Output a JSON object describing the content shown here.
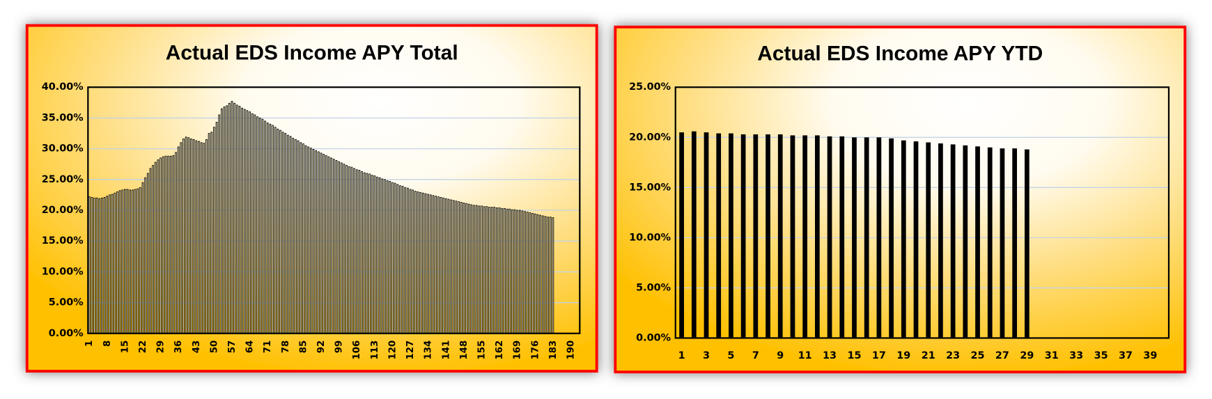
{
  "chart_data": [
    {
      "type": "bar",
      "title": "Actual EDS Income APY Total",
      "categories": [
        "1",
        null,
        null,
        null,
        null,
        null,
        null,
        "8",
        null,
        null,
        null,
        null,
        null,
        null,
        "15",
        null,
        null,
        null,
        null,
        null,
        null,
        "22",
        null,
        null,
        null,
        null,
        null,
        null,
        "29",
        null,
        null,
        null,
        null,
        null,
        null,
        "36",
        null,
        null,
        null,
        null,
        null,
        null,
        "43",
        null,
        null,
        null,
        null,
        null,
        null,
        "50",
        null,
        null,
        null,
        null,
        null,
        null,
        "57",
        null,
        null,
        null,
        null,
        null,
        null,
        "64",
        null,
        null,
        null,
        null,
        null,
        null,
        "71",
        null,
        null,
        null,
        null,
        null,
        null,
        "78",
        null,
        null,
        null,
        null,
        null,
        null,
        "85",
        null,
        null,
        null,
        null,
        null,
        null,
        "92",
        null,
        null,
        null,
        null,
        null,
        null,
        "99",
        null,
        null,
        null,
        null,
        null,
        null,
        "106",
        null,
        null,
        null,
        null,
        null,
        null,
        "113",
        null,
        null,
        null,
        null,
        null,
        null,
        "120",
        null,
        null,
        null,
        null,
        null,
        null,
        "127",
        null,
        null,
        null,
        null,
        null,
        null,
        "134",
        null,
        null,
        null,
        null,
        null,
        null,
        "141",
        null,
        null,
        null,
        null,
        null,
        null,
        "148",
        null,
        null,
        null,
        null,
        null,
        null,
        "155",
        null,
        null,
        null,
        null,
        null,
        null,
        "162",
        null,
        null,
        null,
        null,
        null,
        null,
        "169",
        null,
        null,
        null,
        null,
        null,
        null,
        "176",
        null,
        null,
        null,
        null,
        null,
        null,
        "183",
        null,
        null,
        null,
        null,
        null,
        null,
        "190",
        null,
        null,
        null
      ],
      "values": [
        22.2,
        22.1,
        22.0,
        22.0,
        21.9,
        22.0,
        22.1,
        22.3,
        22.5,
        22.6,
        22.8,
        23.0,
        23.2,
        23.3,
        23.4,
        23.4,
        23.3,
        23.3,
        23.4,
        23.5,
        23.7,
        24.5,
        25.3,
        26.0,
        26.8,
        27.3,
        27.8,
        28.2,
        28.5,
        28.7,
        28.8,
        28.8,
        28.8,
        28.9,
        29.4,
        30.3,
        31.0,
        31.6,
        31.9,
        31.8,
        31.6,
        31.5,
        31.3,
        31.2,
        31.0,
        30.9,
        31.5,
        32.5,
        32.7,
        33.5,
        34.3,
        35.5,
        36.5,
        36.8,
        37.0,
        37.4,
        37.7,
        37.4,
        37.1,
        36.9,
        36.6,
        36.4,
        36.2,
        36.0,
        35.7,
        35.5,
        35.2,
        35.0,
        34.8,
        34.5,
        34.2,
        34.0,
        33.8,
        33.5,
        33.2,
        33.0,
        32.7,
        32.5,
        32.2,
        32.0,
        31.7,
        31.5,
        31.3,
        31.0,
        30.8,
        30.5,
        30.3,
        30.1,
        29.9,
        29.7,
        29.5,
        29.3,
        29.1,
        28.9,
        28.7,
        28.5,
        28.3,
        28.1,
        27.9,
        27.7,
        27.5,
        27.3,
        27.1,
        27.0,
        26.8,
        26.6,
        26.5,
        26.3,
        26.1,
        26.0,
        25.9,
        25.7,
        25.6,
        25.4,
        25.3,
        25.1,
        25.0,
        24.8,
        24.7,
        24.5,
        24.4,
        24.2,
        24.0,
        23.9,
        23.7,
        23.6,
        23.4,
        23.3,
        23.1,
        23.0,
        22.9,
        22.8,
        22.7,
        22.6,
        22.5,
        22.4,
        22.3,
        22.2,
        22.1,
        22.0,
        21.9,
        21.8,
        21.7,
        21.6,
        21.5,
        21.4,
        21.3,
        21.2,
        21.1,
        21.0,
        20.9,
        20.8,
        20.8,
        20.7,
        20.7,
        20.6,
        20.6,
        20.5,
        20.5,
        20.5,
        20.4,
        20.4,
        20.3,
        20.3,
        20.2,
        20.2,
        20.1,
        20.1,
        20.0,
        20.0,
        19.9,
        19.8,
        19.7,
        19.6,
        19.5,
        19.4,
        19.3,
        19.2,
        19.1,
        19.0,
        18.9,
        18.9,
        18.8,
        null,
        null,
        null,
        null,
        null,
        null,
        null,
        null,
        null,
        null
      ],
      "color": "#000000",
      "ylim": [
        0,
        40
      ],
      "yticks": [
        {
          "value": 0,
          "label": "0.00%"
        },
        {
          "value": 5,
          "label": "5.00%"
        },
        {
          "value": 10,
          "label": "10.00%"
        },
        {
          "value": 15,
          "label": "15.00%"
        },
        {
          "value": 20,
          "label": "20.00%"
        },
        {
          "value": 25,
          "label": "25.00%"
        },
        {
          "value": 30,
          "label": "30.00%"
        },
        {
          "value": 35,
          "label": "35.00%"
        },
        {
          "value": 40,
          "label": "40.00%"
        }
      ],
      "grid": true
    },
    {
      "type": "bar",
      "title": "Actual EDS Income APY YTD",
      "categories": [
        "1",
        null,
        "3",
        null,
        "5",
        null,
        "7",
        null,
        "9",
        null,
        "11",
        null,
        "13",
        null,
        "15",
        null,
        "17",
        null,
        "19",
        null,
        "21",
        null,
        "23",
        null,
        "25",
        null,
        "27",
        null,
        "29",
        null,
        "31",
        null,
        "33",
        null,
        "35",
        null,
        "37",
        null,
        "39",
        null
      ],
      "values": [
        20.5,
        20.6,
        20.5,
        20.4,
        20.4,
        20.3,
        20.3,
        20.3,
        20.3,
        20.2,
        20.2,
        20.2,
        20.1,
        20.1,
        20.0,
        20.0,
        20.0,
        19.9,
        19.7,
        19.6,
        19.5,
        19.4,
        19.3,
        19.2,
        19.1,
        19.0,
        18.9,
        18.9,
        18.8,
        null,
        null,
        null,
        null,
        null,
        null,
        null,
        null,
        null,
        null,
        null
      ],
      "color": "#000000",
      "ylim": [
        0,
        25
      ],
      "yticks": [
        {
          "value": 0,
          "label": "0.00%"
        },
        {
          "value": 5,
          "label": "5.00%"
        },
        {
          "value": 10,
          "label": "10.00%"
        },
        {
          "value": 15,
          "label": "15.00%"
        },
        {
          "value": 20,
          "label": "20.00%"
        },
        {
          "value": 25,
          "label": "25.00%"
        }
      ],
      "grid": true
    }
  ]
}
